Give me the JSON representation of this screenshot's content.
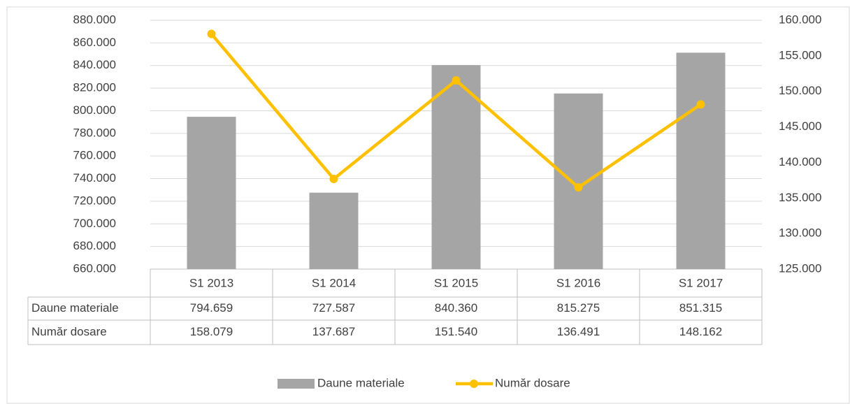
{
  "chart_data": {
    "type": "bar_line",
    "categories": [
      "S1 2013",
      "S1 2014",
      "S1 2015",
      "S1 2016",
      "S1 2017"
    ],
    "series": [
      {
        "name": "Daune materiale",
        "type": "bar",
        "color": "#a5a5a5",
        "axis": "y",
        "values": [
          794659,
          727587,
          840360,
          815275,
          851315
        ],
        "value_labels": [
          "794.659",
          "727.587",
          "840.360",
          "815.275",
          "851.315"
        ]
      },
      {
        "name": "Număr dosare",
        "type": "line",
        "color": "#ffc000",
        "axis": "y2",
        "values": [
          158079,
          137687,
          151540,
          136491,
          148162
        ],
        "value_labels": [
          "158.079",
          "137.687",
          "151.540",
          "136.491",
          "148.162"
        ]
      }
    ],
    "ylim": [
      660000,
      880000
    ],
    "yticks": [
      {
        "value": 660000,
        "label": "660.000"
      },
      {
        "value": 680000,
        "label": "680.000"
      },
      {
        "value": 700000,
        "label": "700.000"
      },
      {
        "value": 720000,
        "label": "720.000"
      },
      {
        "value": 740000,
        "label": "740.000"
      },
      {
        "value": 760000,
        "label": "760.000"
      },
      {
        "value": 780000,
        "label": "780.000"
      },
      {
        "value": 800000,
        "label": "800.000"
      },
      {
        "value": 820000,
        "label": "820.000"
      },
      {
        "value": 840000,
        "label": "840.000"
      },
      {
        "value": 860000,
        "label": "860.000"
      },
      {
        "value": 880000,
        "label": "880.000"
      }
    ],
    "y2lim": [
      125000,
      160000
    ],
    "y2ticks": [
      {
        "value": 125000,
        "label": "125.000"
      },
      {
        "value": 130000,
        "label": "130.000"
      },
      {
        "value": 135000,
        "label": "135.000"
      },
      {
        "value": 140000,
        "label": "140.000"
      },
      {
        "value": 145000,
        "label": "145.000"
      },
      {
        "value": 150000,
        "label": "150.000"
      },
      {
        "value": 155000,
        "label": "155.000"
      },
      {
        "value": 160000,
        "label": "160.000"
      }
    ],
    "grid": true,
    "legend": "bottom"
  }
}
